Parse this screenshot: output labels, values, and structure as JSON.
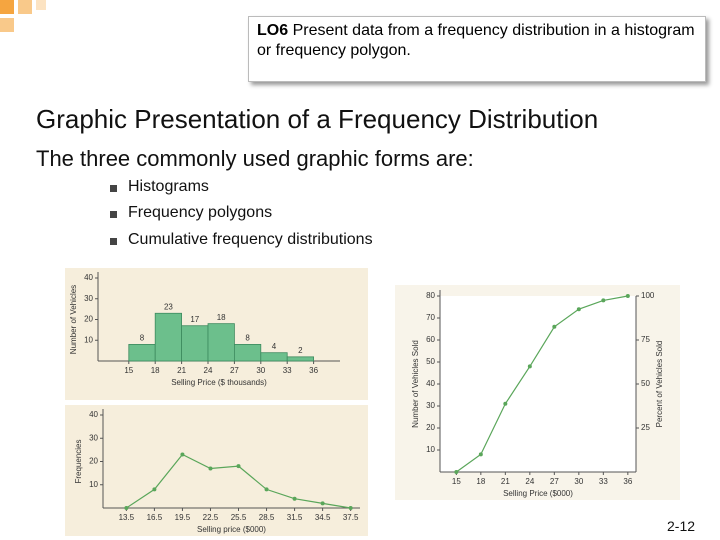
{
  "header": {
    "code": "LO6",
    "text": "Present data from a frequency distribution in a histogram or frequency polygon."
  },
  "title": "Graphic Presentation of a Frequency Distribution",
  "subtitle": "The three commonly used graphic forms are:",
  "bullets": [
    "Histograms",
    "Frequency polygons",
    "Cumulative frequency distributions"
  ],
  "page_number": "2-12",
  "chart_data": [
    {
      "type": "histogram",
      "x_label": "Selling Price ($ thousands)",
      "y_label": "Number of Vehicles",
      "bins": [
        15,
        18,
        21,
        24,
        27,
        30,
        33,
        36
      ],
      "values": [
        8,
        23,
        17,
        18,
        8,
        4,
        2
      ],
      "color": "#6cbf8c",
      "xlim": [
        11.5,
        39
      ],
      "xticks": [
        15,
        18,
        21,
        24,
        27,
        30,
        33,
        36
      ],
      "ylim": [
        0,
        40
      ],
      "yticks": [
        10,
        20,
        30,
        40
      ]
    },
    {
      "type": "line",
      "x_label": "Selling price ($000)",
      "y_label": "Frequencies",
      "x": [
        13.5,
        16.5,
        19.5,
        22.5,
        25.5,
        28.5,
        31.5,
        34.5,
        37.5
      ],
      "values": [
        0,
        8,
        23,
        17,
        18,
        8,
        4,
        2,
        0
      ],
      "color": "#5aa65a",
      "xlim": [
        11,
        38.5
      ],
      "xticks": [
        13.5,
        16.5,
        19.5,
        22.5,
        25.5,
        28.5,
        31.5,
        34.5,
        37.5
      ],
      "ylim": [
        0,
        40
      ],
      "yticks": [
        10,
        20,
        30,
        40
      ]
    },
    {
      "type": "line",
      "x_label": "Selling Price ($000)",
      "y_label": "Number of Vehicles Sold",
      "y2_label": "Percent of Vehicles Sold",
      "x": [
        15,
        18,
        21,
        24,
        27,
        30,
        33,
        36
      ],
      "values": [
        0,
        8,
        31,
        48,
        66,
        74,
        78,
        80
      ],
      "color": "#5aa65a",
      "xlim": [
        13,
        37
      ],
      "xticks": [
        15,
        18,
        21,
        24,
        27,
        30,
        33,
        36
      ],
      "ylim": [
        0,
        80
      ],
      "yticks": [
        10,
        20,
        30,
        40,
        50,
        60,
        70,
        80
      ],
      "y2lim": [
        0,
        100
      ],
      "y2ticks": [
        25,
        50,
        75,
        100
      ]
    }
  ]
}
